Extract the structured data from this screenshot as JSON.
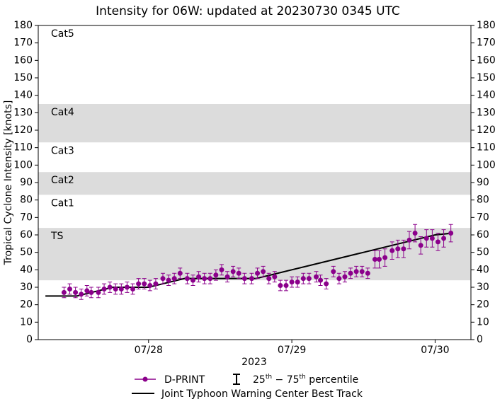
{
  "chart_data": {
    "type": "errorbar",
    "title": "Intensity for 06W: updated at 20230730 0345 UTC",
    "ylabel": "Tropical Cyclone Intensity [knots]",
    "xlabel": "2023",
    "xlim": [
      27.23,
      30.25
    ],
    "xticks": [
      {
        "value": 28,
        "label": "07/28"
      },
      {
        "value": 29,
        "label": "07/29"
      },
      {
        "value": 30,
        "label": "07/30"
      }
    ],
    "ylim": [
      0,
      180
    ],
    "yticks": [
      0,
      10,
      20,
      30,
      40,
      50,
      60,
      70,
      80,
      90,
      100,
      110,
      120,
      130,
      140,
      150,
      160,
      170,
      180
    ],
    "bands": [
      {
        "label": "TS",
        "min": 34,
        "max": 64,
        "shaded": true
      },
      {
        "label": "Cat1",
        "min": 64,
        "max": 83,
        "shaded": false
      },
      {
        "label": "Cat2",
        "min": 83,
        "max": 96,
        "shaded": true
      },
      {
        "label": "Cat3",
        "min": 96,
        "max": 113,
        "shaded": false
      },
      {
        "label": "Cat4",
        "min": 113,
        "max": 135,
        "shaded": true
      },
      {
        "label": "Cat5",
        "min": 135,
        "max": 180,
        "shaded": false
      }
    ],
    "series": [
      {
        "name": "D-PRINT",
        "color": "#8b008b",
        "x": [
          27.41,
          27.45,
          27.49,
          27.53,
          27.57,
          27.6,
          27.65,
          27.69,
          27.73,
          27.77,
          27.81,
          27.85,
          27.89,
          27.93,
          27.97,
          28.01,
          28.05,
          28.1,
          28.14,
          28.18,
          28.22,
          28.27,
          28.31,
          28.35,
          28.39,
          28.43,
          28.47,
          28.51,
          28.55,
          28.59,
          28.63,
          28.67,
          28.72,
          28.76,
          28.8,
          28.84,
          28.88,
          28.92,
          28.96,
          29.0,
          29.04,
          29.08,
          29.12,
          29.17,
          29.2,
          29.24,
          29.29,
          29.33,
          29.37,
          29.41,
          29.45,
          29.49,
          29.53,
          29.58,
          29.61,
          29.65,
          29.7,
          29.74,
          29.78,
          29.82,
          29.86,
          29.9,
          29.94,
          29.98,
          30.02,
          30.06,
          30.11
        ],
        "values": [
          27,
          29,
          27,
          26,
          28,
          27,
          27,
          29,
          30,
          29,
          29,
          30,
          29,
          32,
          32,
          31,
          32,
          35,
          34,
          35,
          38,
          35,
          34,
          36,
          35,
          35,
          37,
          40,
          36,
          39,
          38,
          35,
          35,
          38,
          39,
          35,
          36,
          31,
          31,
          33,
          33,
          35,
          35,
          36,
          34,
          32,
          39,
          35,
          36,
          38,
          39,
          39,
          38,
          46,
          46,
          47,
          51,
          52,
          52,
          57,
          61,
          54,
          58,
          58,
          56,
          58,
          61
        ],
        "error": [
          3,
          3,
          3,
          3,
          3,
          3,
          3,
          3,
          3,
          3,
          3,
          3,
          3,
          3,
          3,
          3,
          3,
          3,
          3,
          3,
          3,
          3,
          3,
          3,
          3,
          3,
          3,
          3,
          3,
          3,
          3,
          3,
          3,
          3,
          3,
          3,
          3,
          3,
          3,
          3,
          3,
          3,
          3,
          3,
          3,
          3,
          3,
          3,
          3,
          3,
          3,
          3,
          3,
          5,
          5,
          5,
          5,
          5,
          5,
          5,
          5,
          5,
          5,
          5,
          5,
          5,
          5
        ]
      },
      {
        "name": "Joint Typhoon Warning Center Best Track",
        "color": "#000000",
        "x": [
          27.28,
          27.5,
          27.75,
          28.0,
          28.25,
          28.5,
          28.75,
          29.0,
          29.25,
          29.5,
          29.75,
          30.0,
          30.12
        ],
        "values": [
          25,
          25,
          30,
          30,
          35,
          35,
          35,
          40,
          45,
          50,
          55,
          60,
          61
        ]
      }
    ],
    "error_label": [
      "25",
      "th",
      " − 75",
      "th",
      " percentile"
    ]
  }
}
